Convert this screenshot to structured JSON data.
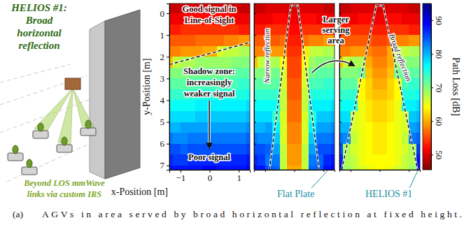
{
  "illustration": {
    "title": [
      "HELIOS #1:",
      "Broad",
      "horizontal",
      "reflection"
    ],
    "caption": [
      "Beyond LOS mmWave",
      "links via custom IRS"
    ]
  },
  "caption": {
    "label": "(a)",
    "text": "AGVs in area served by broad horizontal reflection at fixed height."
  },
  "chart_data": [
    {
      "type": "heatmap",
      "xlabel": "x-Position [m]",
      "ylabel": "y-Position [m]",
      "xlim": [
        -1.38,
        1.38
      ],
      "ylim": [
        -0.45,
        7.2
      ],
      "xticks": [
        {
          "value": -1,
          "label": "−1"
        },
        0,
        1
      ],
      "yticks": [
        0,
        1,
        2,
        3,
        4,
        5,
        6,
        7
      ],
      "x_edges": [
        -1.5,
        -1.25,
        -1,
        -0.75,
        -0.5,
        -0.25,
        0,
        0.25,
        0.5,
        0.75,
        1,
        1.25,
        1.5
      ],
      "y_edges": [
        -0.5,
        0,
        0.5,
        1,
        1.5,
        2,
        2.5,
        3,
        3.5,
        4,
        4.5,
        5,
        5.5,
        6,
        6.5,
        7,
        7.5
      ],
      "values": [
        [
          49,
          49,
          50,
          50,
          50,
          50,
          50,
          50,
          50,
          50,
          49,
          49
        ],
        [
          51,
          51,
          51,
          52,
          52,
          52,
          52,
          52,
          52,
          51,
          51,
          51
        ],
        [
          53,
          53,
          54,
          54,
          54,
          54,
          54,
          54,
          54,
          54,
          53,
          53
        ],
        [
          56,
          56,
          56,
          56,
          57,
          57,
          57,
          57,
          58,
          58,
          59,
          59
        ],
        [
          58,
          58,
          59,
          59,
          59,
          60,
          60,
          66,
          67,
          67,
          68,
          68
        ],
        [
          61,
          67,
          68,
          68,
          69,
          69,
          69,
          69,
          69,
          70,
          70,
          70
        ],
        [
          70,
          70,
          70,
          71,
          71,
          71,
          71,
          71,
          71,
          72,
          72,
          72
        ],
        [
          72,
          72,
          72,
          72,
          73,
          73,
          73,
          73,
          73,
          73,
          74,
          74
        ],
        [
          74,
          74,
          74,
          74,
          75,
          75,
          75,
          75,
          75,
          75,
          75,
          76
        ],
        [
          76,
          76,
          76,
          76,
          77,
          77,
          77,
          77,
          77,
          77,
          77,
          78
        ],
        [
          78,
          78,
          78,
          78,
          79,
          79,
          79,
          79,
          79,
          79,
          79,
          80
        ],
        [
          80,
          80,
          81,
          81,
          81,
          81,
          81,
          81,
          81,
          81,
          81,
          82
        ],
        [
          83,
          82,
          82,
          83,
          83,
          83,
          83,
          83,
          83,
          83,
          83,
          84
        ],
        [
          85,
          85,
          84,
          85,
          85,
          85,
          85,
          85,
          85,
          85,
          85,
          86
        ],
        [
          87,
          86,
          86,
          87,
          87,
          87,
          87,
          87,
          87,
          87,
          87,
          88
        ],
        [
          88,
          88,
          88,
          88,
          88,
          89,
          89,
          88,
          88,
          88,
          88,
          89
        ]
      ],
      "regions": [
        {
          "x": [
            -1.38,
            1.38
          ],
          "y": [
            2.36,
            1.34
          ]
        }
      ],
      "annotations": [
        {
          "text": [
            "Good signal in",
            "Line-of-Sight"
          ]
        },
        {
          "text": [
            "Shadow zone:",
            "increasingly",
            "weaker signal"
          ]
        },
        {
          "text": [
            "Poor signal"
          ]
        }
      ]
    },
    {
      "type": "heatmap",
      "label": "Flat Plate",
      "tick_labels": false,
      "xlim": [
        -1.38,
        1.38
      ],
      "ylim": [
        -0.45,
        7.2
      ],
      "xticks": [
        -1,
        0,
        1
      ],
      "yticks": [
        0,
        1,
        2,
        3,
        4,
        5,
        6,
        7
      ],
      "x_edges": [
        -1.5,
        -1.25,
        -1,
        -0.75,
        -0.5,
        -0.25,
        0,
        0.25,
        0.5,
        0.75,
        1,
        1.25,
        1.5
      ],
      "y_edges": [
        -0.5,
        0,
        0.5,
        1,
        1.5,
        2,
        2.5,
        3,
        3.5,
        4,
        4.5,
        5,
        5.5,
        6,
        6.5,
        7,
        7.5
      ],
      "values": [
        [
          49,
          49,
          50,
          50,
          50,
          50,
          50,
          50,
          50,
          50,
          49,
          49
        ],
        [
          51,
          51,
          51,
          52,
          52,
          51,
          51,
          52,
          52,
          51,
          51,
          51
        ],
        [
          53,
          53,
          54,
          54,
          54,
          52,
          52,
          54,
          54,
          54,
          53,
          53
        ],
        [
          56,
          56,
          56,
          56,
          57,
          53,
          53,
          57,
          58,
          58,
          59,
          59
        ],
        [
          58,
          58,
          59,
          59,
          59,
          54,
          54,
          63,
          67,
          67,
          68,
          68
        ],
        [
          61,
          67,
          68,
          68,
          64,
          55,
          55,
          64,
          69,
          70,
          70,
          70
        ],
        [
          70,
          70,
          70,
          71,
          66,
          55,
          55,
          66,
          71,
          72,
          72,
          72
        ],
        [
          72,
          72,
          72,
          72,
          66,
          56,
          56,
          66,
          73,
          73,
          74,
          74
        ],
        [
          74,
          74,
          74,
          74,
          67,
          56,
          56,
          67,
          75,
          75,
          75,
          76
        ],
        [
          76,
          76,
          76,
          76,
          67,
          57,
          57,
          67,
          77,
          77,
          77,
          78
        ],
        [
          78,
          78,
          78,
          74,
          66,
          57,
          57,
          66,
          75,
          79,
          79,
          80
        ],
        [
          80,
          80,
          81,
          77,
          66,
          58,
          58,
          66,
          77,
          81,
          81,
          82
        ],
        [
          83,
          82,
          82,
          79,
          66,
          58,
          58,
          66,
          79,
          83,
          83,
          84
        ],
        [
          85,
          85,
          84,
          81,
          67,
          59,
          59,
          67,
          81,
          85,
          85,
          86
        ],
        [
          87,
          86,
          83,
          83,
          67,
          59,
          59,
          67,
          83,
          84,
          87,
          88
        ],
        [
          88,
          88,
          85,
          84,
          67,
          60,
          60,
          67,
          84,
          85,
          88,
          89
        ]
      ],
      "regions": [
        {
          "x": [
            -0.85,
            -0.12,
            0.12,
            0.85
          ],
          "y": [
            7.2,
            -0.35,
            -0.35,
            7.2
          ]
        }
      ],
      "annotations": [
        {
          "text": [
            "Narrow reflection"
          ]
        }
      ]
    },
    {
      "type": "heatmap",
      "label": "HELIOS #1",
      "tick_labels": false,
      "xlim": [
        -1.38,
        1.38
      ],
      "ylim": [
        -0.45,
        7.2
      ],
      "xticks": [
        -1,
        0,
        1
      ],
      "yticks": [
        0,
        1,
        2,
        3,
        4,
        5,
        6,
        7
      ],
      "x_edges": [
        -1.5,
        -1.25,
        -1,
        -0.75,
        -0.5,
        -0.25,
        0,
        0.25,
        0.5,
        0.75,
        1,
        1.25,
        1.5
      ],
      "y_edges": [
        -0.5,
        0,
        0.5,
        1,
        1.5,
        2,
        2.5,
        3,
        3.5,
        4,
        4.5,
        5,
        5.5,
        6,
        6.5,
        7,
        7.5
      ],
      "values": [
        [
          49,
          49,
          50,
          50,
          50,
          50,
          50,
          50,
          50,
          50,
          49,
          49
        ],
        [
          51,
          51,
          51,
          52,
          52,
          51,
          51,
          52,
          52,
          51,
          51,
          51
        ],
        [
          53,
          53,
          54,
          54,
          54,
          53,
          53,
          54,
          54,
          54,
          53,
          53
        ],
        [
          56,
          56,
          56,
          56,
          56,
          55,
          55,
          56,
          58,
          58,
          59,
          59
        ],
        [
          58,
          58,
          59,
          59,
          58,
          57,
          57,
          60,
          67,
          67,
          68,
          68
        ],
        [
          61,
          67,
          68,
          68,
          60,
          58,
          58,
          60,
          69,
          70,
          70,
          70
        ],
        [
          70,
          70,
          70,
          71,
          61,
          59,
          59,
          61,
          71,
          72,
          72,
          72
        ],
        [
          72,
          72,
          72,
          64,
          62,
          60,
          60,
          62,
          64,
          73,
          74,
          74
        ],
        [
          74,
          74,
          74,
          64,
          62,
          61,
          61,
          62,
          64,
          75,
          75,
          76
        ],
        [
          76,
          76,
          76,
          65,
          63,
          62,
          62,
          63,
          65,
          77,
          77,
          78
        ],
        [
          78,
          78,
          66,
          65,
          63,
          62,
          62,
          63,
          65,
          66,
          79,
          80
        ],
        [
          80,
          80,
          66,
          65,
          64,
          63,
          63,
          64,
          65,
          66,
          81,
          82
        ],
        [
          83,
          82,
          67,
          65,
          64,
          63,
          63,
          64,
          65,
          67,
          83,
          84
        ],
        [
          85,
          68,
          66,
          65,
          64,
          63,
          63,
          64,
          65,
          66,
          68,
          86
        ],
        [
          87,
          68,
          67,
          65,
          64,
          64,
          64,
          64,
          65,
          67,
          68,
          88
        ],
        [
          88,
          69,
          67,
          66,
          65,
          64,
          64,
          65,
          66,
          67,
          69,
          89
        ]
      ],
      "regions": [
        {
          "x": [
            -1.3,
            -0.12,
            0.12,
            1.3
          ],
          "y": [
            7.2,
            -0.35,
            -0.35,
            7.2
          ]
        }
      ],
      "annotations": [
        {
          "text": [
            "Larger",
            "serving",
            "area"
          ]
        },
        {
          "text": [
            "Broad reflection"
          ]
        }
      ],
      "colorbar": {
        "label": "Path Loss [dB]",
        "range": [
          45.5,
          95
        ],
        "ticks": [
          50,
          60,
          70,
          80,
          90
        ]
      }
    }
  ]
}
